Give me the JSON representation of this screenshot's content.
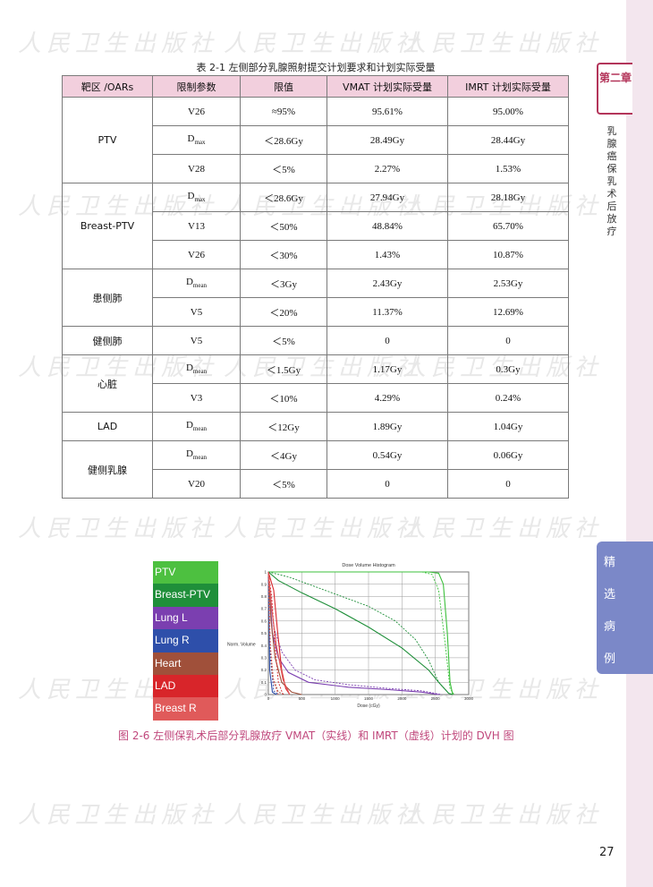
{
  "watermark_text": "人民卫生出版社",
  "sidebar": {
    "chapter_label": "第二章",
    "chapter_title": "乳腺癌保乳术后放疗",
    "section_chars": [
      "精",
      "选",
      "病",
      "例"
    ]
  },
  "page_number": "27",
  "table": {
    "caption": "表 2-1  左侧部分乳腺照射提交计划要求和计划实际受量",
    "headers": [
      "靶区 /OARs",
      "限制参数",
      "限值",
      "VMAT 计划实际受量",
      "IMRT 计划实际受量"
    ],
    "groups": [
      {
        "name": "PTV",
        "rows": [
          {
            "param": "V26",
            "param_sub": "",
            "limit": "≈95%",
            "vmat": "95.61%",
            "imrt": "95.00%"
          },
          {
            "param": "D",
            "param_sub": "max",
            "limit": "＜28.6Gy",
            "vmat": "28.49Gy",
            "imrt": "28.44Gy"
          },
          {
            "param": "V28",
            "param_sub": "",
            "limit": "＜5%",
            "vmat": "2.27%",
            "imrt": "1.53%"
          }
        ]
      },
      {
        "name": "Breast-PTV",
        "rows": [
          {
            "param": "D",
            "param_sub": "max",
            "limit": "＜28.6Gy",
            "vmat": "27.94Gy",
            "imrt": "28.18Gy"
          },
          {
            "param": "V13",
            "param_sub": "",
            "limit": "＜50%",
            "vmat": "48.84%",
            "imrt": "65.70%"
          },
          {
            "param": "V26",
            "param_sub": "",
            "limit": "＜30%",
            "vmat": "1.43%",
            "imrt": "10.87%"
          }
        ]
      },
      {
        "name": "患侧肺",
        "rows": [
          {
            "param": "D",
            "param_sub": "mean",
            "limit": "＜3Gy",
            "vmat": "2.43Gy",
            "imrt": "2.53Gy"
          },
          {
            "param": "V5",
            "param_sub": "",
            "limit": "＜20%",
            "vmat": "11.37%",
            "imrt": "12.69%"
          }
        ]
      },
      {
        "name": "健侧肺",
        "rows": [
          {
            "param": "V5",
            "param_sub": "",
            "limit": "＜5%",
            "vmat": "0",
            "imrt": "0"
          }
        ]
      },
      {
        "name": "心脏",
        "rows": [
          {
            "param": "D",
            "param_sub": "mean",
            "limit": "＜1.5Gy",
            "vmat": "1.17Gy",
            "imrt": "0.3Gy"
          },
          {
            "param": "V3",
            "param_sub": "",
            "limit": "＜10%",
            "vmat": "4.29%",
            "imrt": "0.24%"
          }
        ]
      },
      {
        "name": "LAD",
        "rows": [
          {
            "param": "D",
            "param_sub": "mean",
            "limit": "＜12Gy",
            "vmat": "1.89Gy",
            "imrt": "1.04Gy"
          }
        ]
      },
      {
        "name": "健侧乳腺",
        "rows": [
          {
            "param": "D",
            "param_sub": "mean",
            "limit": "＜4Gy",
            "vmat": "0.54Gy",
            "imrt": "0.06Gy"
          },
          {
            "param": "V20",
            "param_sub": "",
            "limit": "＜5%",
            "vmat": "0",
            "imrt": "0"
          }
        ]
      }
    ]
  },
  "figure": {
    "caption": "图 2-6  左侧保乳术后部分乳腺放疗 VMAT（实线）和 IMRT（虚线）计划的 DVH 图",
    "legend": [
      {
        "label": "PTV",
        "color": "#4dc040"
      },
      {
        "label": "Breast-PTV",
        "color": "#1f8f3a"
      },
      {
        "label": "Lung L",
        "color": "#7b3fb0"
      },
      {
        "label": "Lung R",
        "color": "#2e4faa"
      },
      {
        "label": "Heart",
        "color": "#a0503a"
      },
      {
        "label": "LAD",
        "color": "#d8252a"
      },
      {
        "label": "Breast R",
        "color": "#e05a5a"
      }
    ]
  },
  "chart_data": {
    "type": "line",
    "title": "Dose Volume Histogram",
    "xlabel": "Dose (cGy)",
    "ylabel": "Norm. Volume",
    "xlim": [
      0,
      3000
    ],
    "ylim": [
      0,
      1
    ],
    "x_ticks": [
      0,
      500,
      1000,
      1500,
      2000,
      2500,
      3000
    ],
    "y_ticks": [
      0,
      0.1,
      0.2,
      0.3,
      0.4,
      0.5,
      0.6,
      0.7,
      0.8,
      0.9,
      1
    ],
    "grid": true,
    "series": [
      {
        "name": "PTV",
        "color": "#3cc03c",
        "dash": false,
        "points": [
          [
            0,
            1
          ],
          [
            2400,
            1
          ],
          [
            2550,
            0.99
          ],
          [
            2620,
            0.9
          ],
          [
            2680,
            0.5
          ],
          [
            2720,
            0.1
          ],
          [
            2760,
            0
          ]
        ]
      },
      {
        "name": "PTV",
        "color": "#3cc03c",
        "dash": true,
        "points": [
          [
            0,
            1
          ],
          [
            2300,
            1
          ],
          [
            2450,
            0.98
          ],
          [
            2550,
            0.85
          ],
          [
            2650,
            0.4
          ],
          [
            2720,
            0.05
          ],
          [
            2780,
            0
          ]
        ]
      },
      {
        "name": "Breast-PTV",
        "color": "#1f8f3a",
        "dash": false,
        "points": [
          [
            0,
            1
          ],
          [
            150,
            0.93
          ],
          [
            500,
            0.83
          ],
          [
            1000,
            0.7
          ],
          [
            1500,
            0.55
          ],
          [
            2000,
            0.38
          ],
          [
            2400,
            0.2
          ],
          [
            2550,
            0.1
          ],
          [
            2700,
            0.01
          ],
          [
            2760,
            0
          ]
        ]
      },
      {
        "name": "Breast-PTV",
        "color": "#1f8f3a",
        "dash": true,
        "points": [
          [
            0,
            1
          ],
          [
            300,
            0.96
          ],
          [
            700,
            0.88
          ],
          [
            1100,
            0.8
          ],
          [
            1500,
            0.72
          ],
          [
            1900,
            0.6
          ],
          [
            2200,
            0.45
          ],
          [
            2400,
            0.28
          ],
          [
            2550,
            0.1
          ],
          [
            2700,
            0.01
          ],
          [
            2760,
            0
          ]
        ]
      },
      {
        "name": "Lung L",
        "color": "#7b3fb0",
        "dash": false,
        "points": [
          [
            0,
            1
          ],
          [
            60,
            0.5
          ],
          [
            150,
            0.3
          ],
          [
            300,
            0.18
          ],
          [
            600,
            0.1
          ],
          [
            1200,
            0.06
          ],
          [
            1800,
            0.04
          ],
          [
            2300,
            0.02
          ],
          [
            2550,
            0
          ]
        ]
      },
      {
        "name": "Lung L",
        "color": "#7b3fb0",
        "dash": true,
        "points": [
          [
            0,
            1
          ],
          [
            80,
            0.55
          ],
          [
            200,
            0.35
          ],
          [
            400,
            0.2
          ],
          [
            700,
            0.12
          ],
          [
            1200,
            0.08
          ],
          [
            1800,
            0.05
          ],
          [
            2300,
            0.03
          ],
          [
            2600,
            0
          ]
        ]
      },
      {
        "name": "Lung R",
        "color": "#2e4faa",
        "dash": false,
        "points": [
          [
            0,
            1
          ],
          [
            20,
            0.2
          ],
          [
            60,
            0.02
          ],
          [
            120,
            0
          ]
        ]
      },
      {
        "name": "Lung R",
        "color": "#2e4faa",
        "dash": true,
        "points": [
          [
            0,
            1
          ],
          [
            30,
            0.3
          ],
          [
            80,
            0.03
          ],
          [
            150,
            0
          ]
        ]
      },
      {
        "name": "Heart",
        "color": "#a0503a",
        "dash": false,
        "points": [
          [
            0,
            1
          ],
          [
            40,
            0.6
          ],
          [
            100,
            0.3
          ],
          [
            200,
            0.1
          ],
          [
            350,
            0.02
          ],
          [
            500,
            0
          ]
        ]
      },
      {
        "name": "Heart",
        "color": "#a0503a",
        "dash": true,
        "points": [
          [
            0,
            1
          ],
          [
            20,
            0.5
          ],
          [
            60,
            0.15
          ],
          [
            150,
            0.02
          ],
          [
            250,
            0
          ]
        ]
      },
      {
        "name": "LAD",
        "color": "#d8252a",
        "dash": false,
        "points": [
          [
            0,
            1
          ],
          [
            80,
            0.85
          ],
          [
            140,
            0.5
          ],
          [
            200,
            0.2
          ],
          [
            260,
            0.05
          ],
          [
            320,
            0
          ]
        ]
      },
      {
        "name": "LAD",
        "color": "#d8252a",
        "dash": true,
        "points": [
          [
            0,
            1
          ],
          [
            50,
            0.8
          ],
          [
            100,
            0.4
          ],
          [
            150,
            0.1
          ],
          [
            220,
            0
          ]
        ]
      },
      {
        "name": "Breast R",
        "color": "#e05a5a",
        "dash": false,
        "points": [
          [
            0,
            1
          ],
          [
            50,
            0.7
          ],
          [
            120,
            0.4
          ],
          [
            220,
            0.12
          ],
          [
            320,
            0
          ]
        ]
      },
      {
        "name": "Breast R",
        "color": "#e05a5a",
        "dash": true,
        "points": [
          [
            0,
            1
          ],
          [
            30,
            0.4
          ],
          [
            80,
            0.1
          ],
          [
            150,
            0
          ]
        ]
      }
    ]
  }
}
